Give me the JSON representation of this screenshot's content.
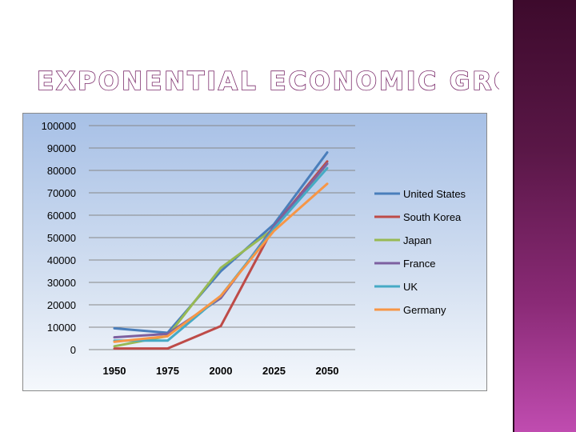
{
  "slide": {
    "title": "EXPONENTIAL ECONOMIC GROWTH"
  },
  "chart_data": {
    "type": "line",
    "title": "",
    "xlabel": "",
    "ylabel": "",
    "categories": [
      "1950",
      "1975",
      "2000",
      "2025",
      "2050"
    ],
    "ylim": [
      0,
      100000
    ],
    "yticks": [
      "100000",
      "90000",
      "80000",
      "70000",
      "60000",
      "50000",
      "40000",
      "30000",
      "20000",
      "10000",
      "0"
    ],
    "grid": true,
    "legend": "right",
    "series": [
      {
        "name": "United States",
        "color": "#4a7ebb",
        "values": [
          9500,
          7500,
          35000,
          56000,
          88000
        ]
      },
      {
        "name": "South Korea",
        "color": "#be4b48",
        "values": [
          500,
          500,
          10500,
          55000,
          84000
        ]
      },
      {
        "name": "Japan",
        "color": "#98b954",
        "values": [
          1500,
          6000,
          36500,
          54000,
          83000
        ]
      },
      {
        "name": "France",
        "color": "#7d60a0",
        "values": [
          5500,
          7000,
          23000,
          55000,
          83000
        ]
      },
      {
        "name": "UK",
        "color": "#46aac5",
        "values": [
          4000,
          4000,
          24000,
          54000,
          81000
        ]
      },
      {
        "name": "Germany",
        "color": "#f79646",
        "values": [
          3500,
          6000,
          24000,
          53000,
          74000
        ]
      }
    ]
  }
}
